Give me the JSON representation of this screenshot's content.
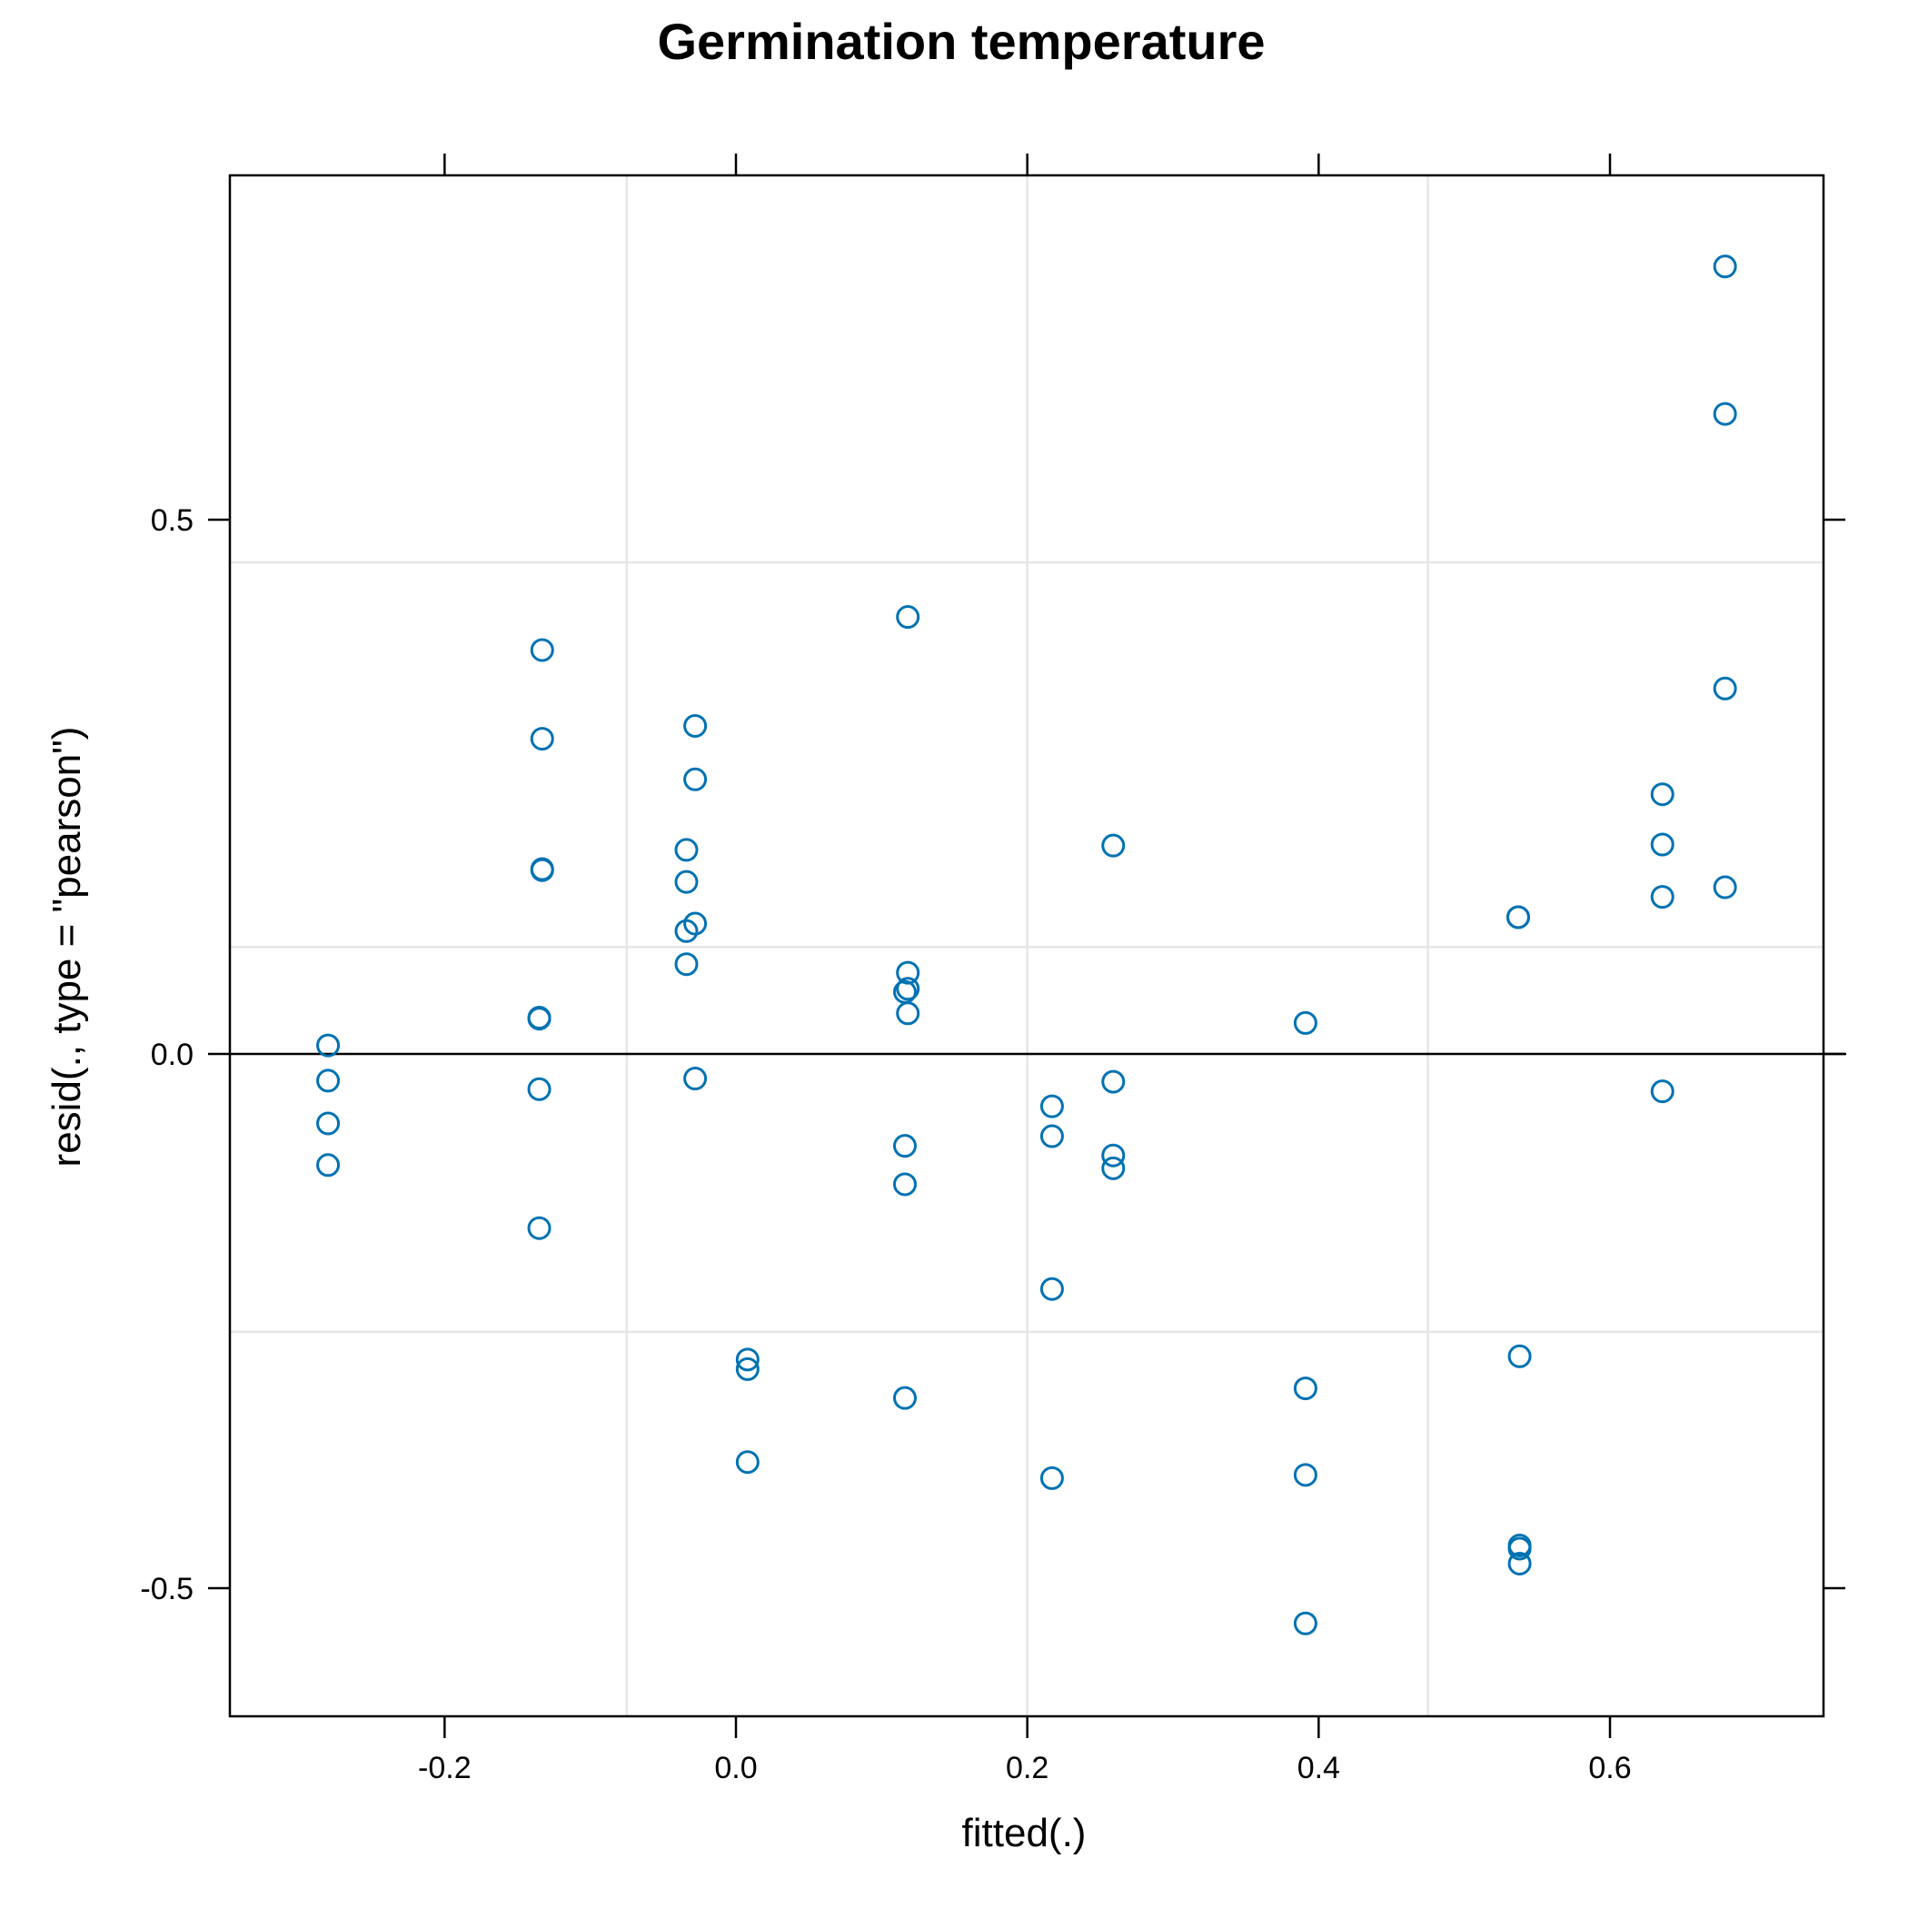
{
  "chart_data": {
    "type": "scatter",
    "title": "Germination temperature",
    "xlabel": "fitted(.)",
    "ylabel": "resid(., type = \"pearson\")",
    "xlim": [
      -0.35,
      0.74
    ],
    "ylim": [
      -0.62,
      0.82
    ],
    "x_ticks": [
      -0.2,
      0.0,
      0.2,
      0.4,
      0.6
    ],
    "x_tick_labels": [
      "-0.2",
      "0.0",
      "0.2",
      "0.4",
      "0.6"
    ],
    "y_ticks": [
      -0.5,
      0.0,
      0.5
    ],
    "y_tick_labels": [
      "-0.5",
      "0.0",
      "0.5"
    ],
    "x_grid": [
      -0.075,
      0.2,
      0.475
    ],
    "y_grid": [
      -0.26,
      0.1,
      0.46
    ],
    "reference_line_y": 0,
    "grid": true,
    "point_color": "#0072b2",
    "point_shape": "open-circle",
    "points": [
      {
        "x": -0.28,
        "y": 0.008
      },
      {
        "x": -0.28,
        "y": -0.025
      },
      {
        "x": -0.28,
        "y": -0.065
      },
      {
        "x": -0.28,
        "y": -0.104
      },
      {
        "x": -0.133,
        "y": 0.378
      },
      {
        "x": -0.133,
        "y": 0.295
      },
      {
        "x": -0.133,
        "y": 0.173
      },
      {
        "x": -0.133,
        "y": 0.172
      },
      {
        "x": -0.135,
        "y": 0.034
      },
      {
        "x": -0.135,
        "y": 0.033
      },
      {
        "x": -0.135,
        "y": -0.033
      },
      {
        "x": -0.135,
        "y": -0.163
      },
      {
        "x": -0.028,
        "y": 0.307
      },
      {
        "x": -0.028,
        "y": 0.257
      },
      {
        "x": -0.034,
        "y": 0.191
      },
      {
        "x": -0.034,
        "y": 0.161
      },
      {
        "x": -0.034,
        "y": 0.115
      },
      {
        "x": -0.028,
        "y": 0.122
      },
      {
        "x": -0.034,
        "y": 0.084
      },
      {
        "x": -0.028,
        "y": -0.023
      },
      {
        "x": 0.008,
        "y": -0.286
      },
      {
        "x": 0.008,
        "y": -0.295
      },
      {
        "x": 0.008,
        "y": -0.382
      },
      {
        "x": 0.118,
        "y": 0.409
      },
      {
        "x": 0.118,
        "y": 0.076
      },
      {
        "x": 0.118,
        "y": 0.061
      },
      {
        "x": 0.116,
        "y": 0.058
      },
      {
        "x": 0.118,
        "y": 0.038
      },
      {
        "x": 0.116,
        "y": -0.086
      },
      {
        "x": 0.116,
        "y": -0.122
      },
      {
        "x": 0.116,
        "y": -0.322
      },
      {
        "x": 0.217,
        "y": -0.049
      },
      {
        "x": 0.217,
        "y": -0.077
      },
      {
        "x": 0.217,
        "y": -0.22
      },
      {
        "x": 0.217,
        "y": -0.397
      },
      {
        "x": 0.259,
        "y": 0.195
      },
      {
        "x": 0.259,
        "y": -0.026
      },
      {
        "x": 0.259,
        "y": -0.095
      },
      {
        "x": 0.259,
        "y": -0.107
      },
      {
        "x": 0.391,
        "y": 0.029
      },
      {
        "x": 0.391,
        "y": -0.313
      },
      {
        "x": 0.391,
        "y": -0.394
      },
      {
        "x": 0.391,
        "y": -0.533
      },
      {
        "x": 0.537,
        "y": 0.128
      },
      {
        "x": 0.537,
        "y": 0.128
      },
      {
        "x": 0.538,
        "y": -0.283
      },
      {
        "x": 0.538,
        "y": -0.46
      },
      {
        "x": 0.538,
        "y": -0.463
      },
      {
        "x": 0.538,
        "y": -0.477
      },
      {
        "x": 0.636,
        "y": 0.243
      },
      {
        "x": 0.636,
        "y": 0.196
      },
      {
        "x": 0.636,
        "y": 0.147
      },
      {
        "x": 0.636,
        "y": -0.035
      },
      {
        "x": 0.679,
        "y": 0.737
      },
      {
        "x": 0.679,
        "y": 0.599
      },
      {
        "x": 0.679,
        "y": 0.342
      },
      {
        "x": 0.679,
        "y": 0.156
      }
    ]
  }
}
